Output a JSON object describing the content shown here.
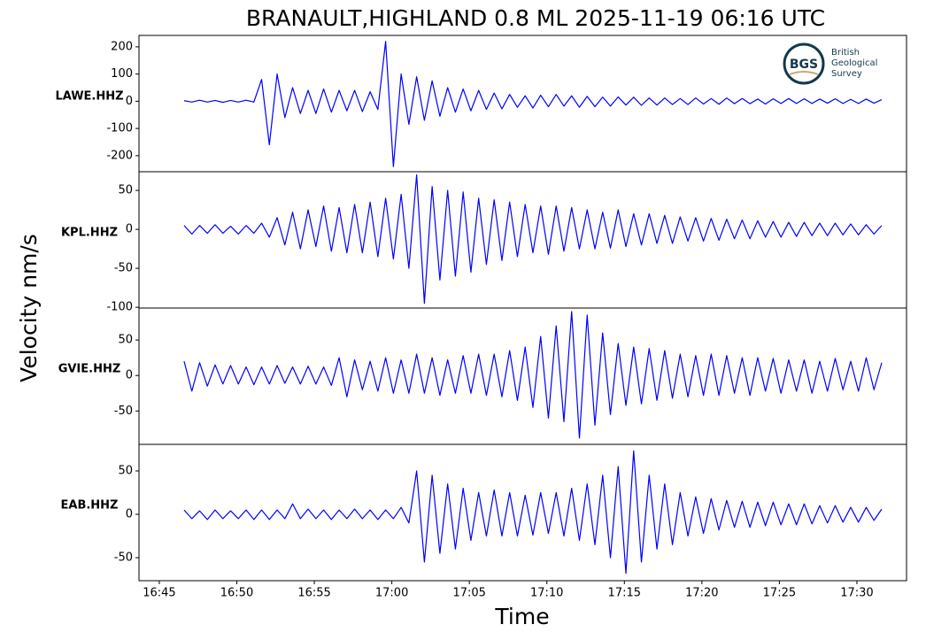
{
  "chart_data": {
    "type": "line",
    "title": "BRANAULT,HIGHLAND 0.8 ML   2025-11-19 06:16 UTC",
    "xlabel": "Time",
    "ylabel": "Velocity nm/s",
    "xlim": [
      1003.69,
      1053.2
    ],
    "xticks": [
      {
        "value": 1005,
        "label": "16:45"
      },
      {
        "value": 1010,
        "label": "16:50"
      },
      {
        "value": 1015,
        "label": "16:55"
      },
      {
        "value": 1020,
        "label": "17:00"
      },
      {
        "value": 1025,
        "label": "17:05"
      },
      {
        "value": 1030,
        "label": "17:10"
      },
      {
        "value": 1035,
        "label": "17:15"
      },
      {
        "value": 1040,
        "label": "17:20"
      },
      {
        "value": 1045,
        "label": "17:25"
      },
      {
        "value": 1050,
        "label": "17:30"
      }
    ],
    "x": [
      1006.6,
      1007.1,
      1007.6,
      1008.1,
      1008.6,
      1009.1,
      1009.6,
      1010.1,
      1010.6,
      1011.1,
      1011.6,
      1012.1,
      1012.6,
      1013.1,
      1013.6,
      1014.1,
      1014.6,
      1015.1,
      1015.6,
      1016.1,
      1016.6,
      1017.1,
      1017.6,
      1018.1,
      1018.6,
      1019.1,
      1019.6,
      1020.1,
      1020.6,
      1021.1,
      1021.6,
      1022.1,
      1022.6,
      1023.1,
      1023.6,
      1024.1,
      1024.6,
      1025.1,
      1025.6,
      1026.1,
      1026.6,
      1027.1,
      1027.6,
      1028.1,
      1028.6,
      1029.1,
      1029.6,
      1030.1,
      1030.6,
      1031.1,
      1031.6,
      1032.1,
      1032.6,
      1033.1,
      1033.6,
      1034.1,
      1034.6,
      1035.1,
      1035.6,
      1036.1,
      1036.6,
      1037.1,
      1037.6,
      1038.1,
      1038.6,
      1039.1,
      1039.6,
      1040.1,
      1040.6,
      1041.1,
      1041.6,
      1042.1,
      1042.6,
      1043.1,
      1043.6,
      1044.1,
      1044.6,
      1045.1,
      1045.6,
      1046.1,
      1046.6,
      1047.1,
      1047.6,
      1048.1,
      1048.6,
      1049.1,
      1049.6,
      1050.1,
      1050.6,
      1051.1,
      1051.6
    ],
    "series": [
      {
        "name": "LAWE.HHZ",
        "color": "#0000ff",
        "ylim": [
          -259,
          242
        ],
        "yticks": [
          -200,
          -100,
          0,
          100,
          200
        ],
        "values": [
          2,
          -3,
          4,
          -3,
          3,
          -4,
          3,
          -3,
          4,
          -3,
          80,
          -160,
          100,
          -60,
          50,
          -45,
          40,
          -45,
          45,
          -40,
          40,
          -35,
          40,
          -38,
          35,
          -30,
          220,
          -240,
          100,
          -85,
          90,
          -70,
          75,
          -55,
          50,
          -40,
          45,
          -35,
          40,
          -30,
          30,
          -28,
          25,
          -22,
          20,
          -25,
          22,
          -20,
          25,
          -18,
          20,
          -22,
          18,
          -20,
          15,
          -18,
          16,
          -14,
          15,
          -15,
          12,
          -14,
          12,
          -12,
          10,
          -12,
          12,
          -10,
          10,
          -11,
          12,
          -9,
          10,
          -9,
          8,
          -10,
          9,
          -8,
          10,
          -8,
          9,
          -8,
          8,
          -7,
          9,
          -8,
          7,
          -8,
          8,
          -7,
          6
        ]
      },
      {
        "name": "KPL.HHZ",
        "color": "#0000ff",
        "ylim": [
          -101,
          74
        ],
        "yticks": [
          -100,
          -50,
          0,
          50
        ],
        "values": [
          5,
          -6,
          5,
          -5,
          6,
          -5,
          4,
          -6,
          5,
          -5,
          8,
          -10,
          15,
          -20,
          22,
          -25,
          25,
          -22,
          30,
          -28,
          28,
          -30,
          32,
          -30,
          35,
          -35,
          40,
          -38,
          45,
          -50,
          70,
          -95,
          55,
          -65,
          50,
          -60,
          48,
          -55,
          40,
          -45,
          38,
          -40,
          35,
          -35,
          32,
          -30,
          30,
          -32,
          30,
          -28,
          28,
          -25,
          25,
          -25,
          22,
          -24,
          25,
          -22,
          20,
          -20,
          20,
          -18,
          18,
          -18,
          16,
          -15,
          15,
          -15,
          14,
          -14,
          13,
          -12,
          12,
          -12,
          11,
          -10,
          10,
          -10,
          9,
          -9,
          9,
          -8,
          8,
          -8,
          8,
          -7,
          7,
          -7,
          6,
          -6,
          5
        ]
      },
      {
        "name": "GVIE.HHZ",
        "color": "#0000ff",
        "ylim": [
          -97,
          95
        ],
        "yticks": [
          -50,
          0,
          50
        ],
        "values": [
          20,
          -22,
          18,
          -15,
          15,
          -12,
          14,
          -12,
          12,
          -13,
          12,
          -12,
          14,
          -11,
          12,
          -12,
          13,
          -12,
          12,
          -14,
          25,
          -30,
          22,
          -20,
          20,
          -22,
          25,
          -25,
          22,
          -25,
          30,
          -25,
          25,
          -28,
          22,
          -25,
          28,
          -25,
          30,
          -28,
          30,
          -30,
          35,
          -35,
          40,
          -45,
          55,
          -60,
          70,
          -65,
          90,
          -88,
          85,
          -70,
          60,
          -55,
          45,
          -42,
          40,
          -40,
          38,
          -35,
          35,
          -32,
          30,
          -30,
          28,
          -28,
          30,
          -28,
          28,
          -25,
          25,
          -28,
          25,
          -22,
          24,
          -25,
          22,
          -22,
          22,
          -25,
          20,
          -22,
          24,
          -20,
          20,
          -22,
          25,
          -20,
          18
        ]
      },
      {
        "name": "EAB.HHZ",
        "color": "#0000ff",
        "ylim": [
          -76.5,
          80.6
        ],
        "yticks": [
          -50,
          0,
          50
        ],
        "values": [
          5,
          -5,
          4,
          -6,
          5,
          -5,
          4,
          -5,
          5,
          -6,
          5,
          -6,
          5,
          -5,
          12,
          -5,
          6,
          -5,
          5,
          -6,
          5,
          -5,
          6,
          -5,
          5,
          -6,
          5,
          -5,
          8,
          -10,
          50,
          -55,
          45,
          -45,
          35,
          -40,
          30,
          -30,
          25,
          -25,
          28,
          -25,
          25,
          -25,
          22,
          -24,
          25,
          -22,
          25,
          -25,
          30,
          -30,
          35,
          -35,
          45,
          -50,
          55,
          -68,
          73,
          -55,
          45,
          -40,
          35,
          -35,
          25,
          -25,
          20,
          -22,
          18,
          -18,
          16,
          -15,
          15,
          -15,
          14,
          -13,
          14,
          -12,
          12,
          -12,
          12,
          -11,
          10,
          -10,
          10,
          -9,
          8,
          -9,
          8,
          -7,
          6
        ]
      }
    ]
  },
  "logo": {
    "abbr": "BGS",
    "name": [
      "British",
      "Geological",
      "Survey"
    ]
  }
}
